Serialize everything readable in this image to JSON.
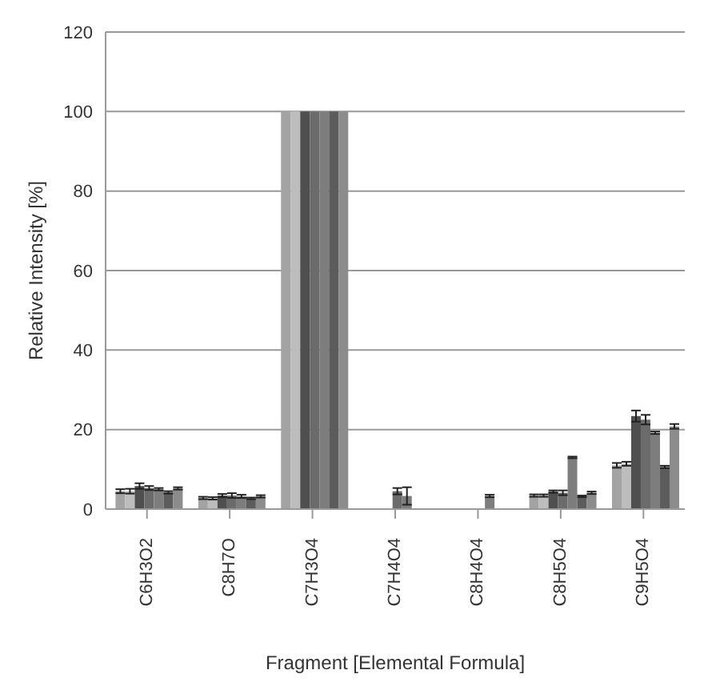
{
  "chart_data": {
    "type": "bar",
    "xlabel": "Fragment [Elemental Formula]",
    "ylabel": "Relative Intensity [%]",
    "categories": [
      "C6H3O2",
      "C8H7O",
      "C7H3O4",
      "C7H4O4",
      "C8H4O4",
      "C8H5O4",
      "C9H5O4"
    ],
    "series": [
      {
        "color": "#a3a3a3",
        "values": [
          4.5,
          2.8,
          100,
          null,
          null,
          3.4,
          11
        ],
        "errors": [
          0.5,
          0.3,
          null,
          null,
          null,
          0.3,
          0.6
        ]
      },
      {
        "color": "#bdbdbd",
        "values": [
          4.5,
          2.7,
          100,
          null,
          null,
          3.4,
          11.4
        ],
        "errors": [
          0.6,
          0.3,
          null,
          null,
          null,
          0.3,
          0.5
        ]
      },
      {
        "color": "#4f4f4f",
        "values": [
          5.8,
          3.4,
          100,
          null,
          null,
          4.4,
          23.4
        ],
        "errors": [
          0.7,
          0.4,
          null,
          null,
          null,
          0.3,
          1.4
        ]
      },
      {
        "color": "#6b6b6b",
        "values": [
          5.3,
          3.4,
          100,
          4.5,
          null,
          4.1,
          22.5
        ],
        "errors": [
          0.5,
          0.6,
          null,
          0.8,
          null,
          0.6,
          1.2
        ]
      },
      {
        "color": "#7d7d7d",
        "values": [
          5,
          3.2,
          100,
          3.3,
          3.3,
          13,
          19.2
        ],
        "errors": [
          0.3,
          0.4,
          null,
          2.2,
          0.3,
          0.2,
          0.3
        ]
      },
      {
        "color": "#5c5c5c",
        "values": [
          4.2,
          2.7,
          100,
          null,
          null,
          3.2,
          10.6
        ],
        "errors": [
          0.3,
          0.2,
          null,
          null,
          null,
          0.2,
          0.3
        ]
      },
      {
        "color": "#8c8c8c",
        "values": [
          5.2,
          3.2,
          100,
          null,
          null,
          4.1,
          20.8
        ],
        "errors": [
          0.3,
          0.3,
          null,
          null,
          null,
          0.3,
          0.6
        ]
      }
    ],
    "ylim": [
      0,
      120
    ],
    "yticks": [
      0,
      20,
      40,
      60,
      80,
      100,
      120
    ],
    "grid": "y"
  }
}
